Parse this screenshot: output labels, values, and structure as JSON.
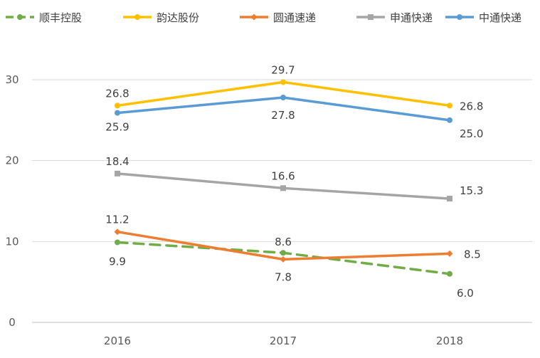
{
  "chart_data": {
    "type": "line",
    "title": "",
    "xlabel": "",
    "ylabel": "",
    "categories": [
      "2016",
      "2017",
      "2018"
    ],
    "ylim": [
      0,
      30
    ],
    "yticks": [
      "0",
      "10",
      "20",
      "30"
    ],
    "grid": true,
    "legend_position": "top",
    "series": [
      {
        "name": "顺丰控股",
        "values": [
          9.9,
          8.6,
          6.0
        ],
        "labels": [
          "9.9",
          "8.6",
          "6.0"
        ],
        "color": "#70ad47",
        "marker": "circle",
        "dashed": true
      },
      {
        "name": "韵达股份",
        "values": [
          26.8,
          29.7,
          26.8
        ],
        "labels": [
          "26.8",
          "29.7",
          "26.8"
        ],
        "color": "#ffc000",
        "marker": "circle",
        "dashed": false
      },
      {
        "name": "圆通速递",
        "values": [
          11.2,
          7.8,
          8.5
        ],
        "labels": [
          "11.2",
          "7.8",
          "8.5"
        ],
        "color": "#ed7d31",
        "marker": "diamond",
        "dashed": false
      },
      {
        "name": "申通快递",
        "values": [
          18.4,
          16.6,
          15.3
        ],
        "labels": [
          "18.4",
          "16.6",
          "15.3"
        ],
        "color": "#a5a5a5",
        "marker": "square",
        "dashed": false
      },
      {
        "name": "中通快递",
        "values": [
          25.9,
          27.8,
          25.0
        ],
        "labels": [
          "25.9",
          "27.8",
          "25.0"
        ],
        "color": "#5b9bd5",
        "marker": "circle",
        "dashed": false
      }
    ]
  }
}
